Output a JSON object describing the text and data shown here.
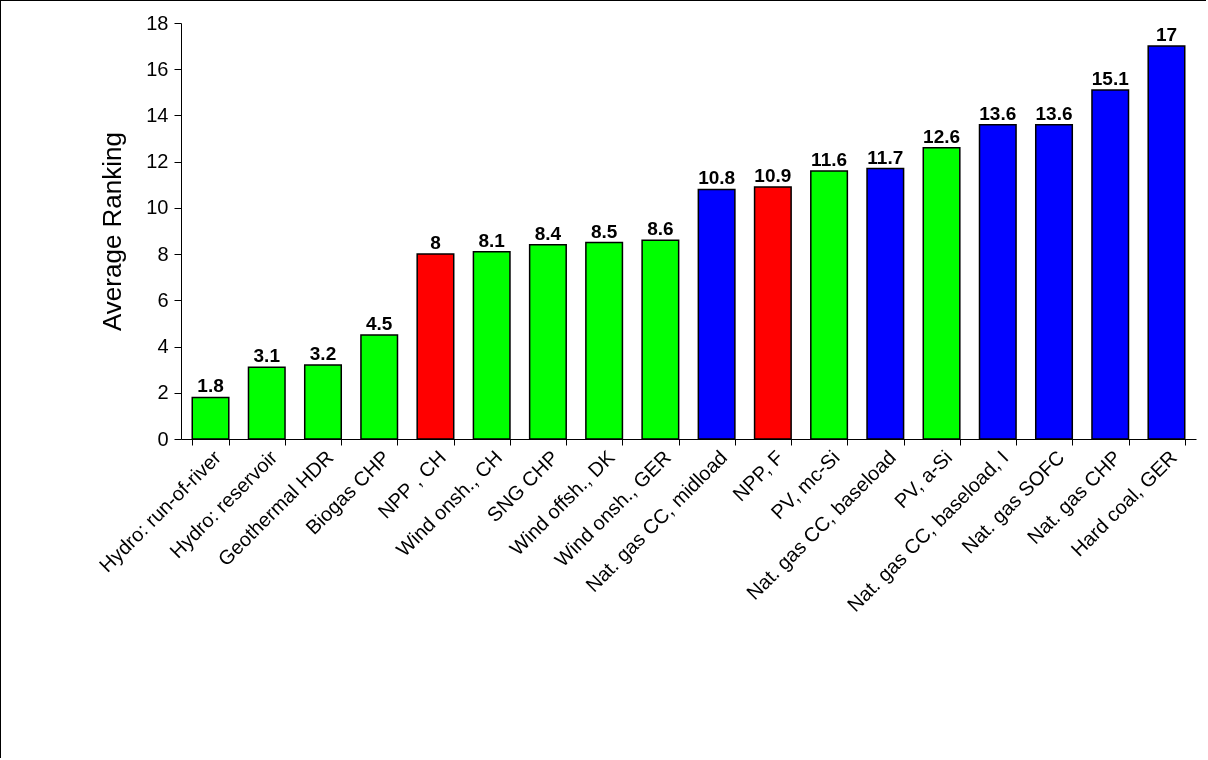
{
  "chart_data": {
    "type": "bar",
    "ylabel": "Average Ranking",
    "categories": [
      "Hydro: run-of-river",
      "Hydro: reservoir",
      "Geothermal HDR",
      "Biogas CHP",
      "NPP , CH",
      "Wind onsh., CH",
      "SNG CHP",
      "Wind offsh., DK",
      "Wind onsh., GER",
      "Nat. gas CC, midload",
      "NPP, F",
      "PV, mc-Si",
      "Nat. gas CC, baseload",
      "PV, a-Si",
      "Nat. gas CC, baseload, I",
      "Nat. gas SOFC",
      "Nat. gas CHP",
      "Hard coal, GER"
    ],
    "values": [
      1.8,
      3.1,
      3.2,
      4.5,
      8,
      8.1,
      8.4,
      8.5,
      8.6,
      10.8,
      10.9,
      11.6,
      11.7,
      12.6,
      13.6,
      13.6,
      15.1,
      17
    ],
    "colors": [
      "#00ff00",
      "#00ff00",
      "#00ff00",
      "#00ff00",
      "#ff0000",
      "#00ff00",
      "#00ff00",
      "#00ff00",
      "#00ff00",
      "#0000ff",
      "#ff0000",
      "#00ff00",
      "#0000ff",
      "#00ff00",
      "#0000ff",
      "#0000ff",
      "#0000ff",
      "#0000ff"
    ],
    "ylim": [
      0,
      18
    ],
    "yticks": [
      0,
      2,
      4,
      6,
      8,
      10,
      12,
      14,
      16,
      18
    ],
    "data_labels": true,
    "grid": false
  }
}
